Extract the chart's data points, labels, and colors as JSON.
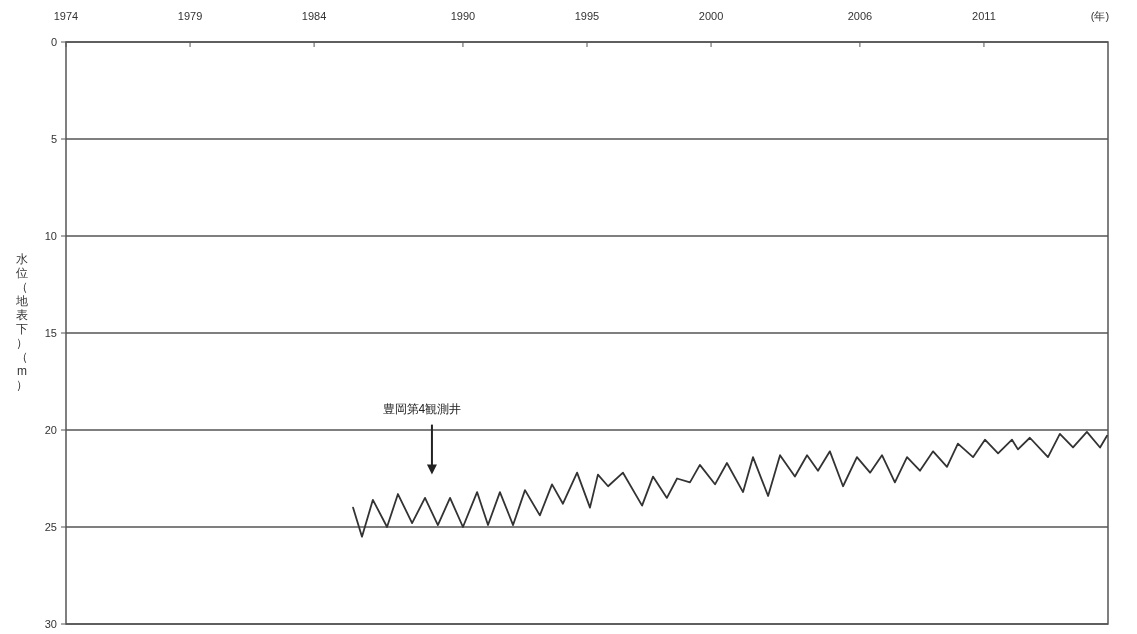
{
  "chart_data": {
    "type": "line",
    "xlabel": "(年)",
    "ylabel": "水位（地表下）（m）",
    "xlim": [
      1974,
      2016
    ],
    "xticks": [
      1974,
      1979,
      1984,
      1990,
      1995,
      2000,
      2006,
      2011
    ],
    "ylim": [
      30,
      0
    ],
    "yticks": [
      0,
      5,
      10,
      15,
      20,
      25,
      30
    ],
    "grid": "y",
    "annotations": [
      "豊岡第4観測井"
    ],
    "series": [
      {
        "color": "#333333",
        "x": [
          1985.57,
          1985.93,
          1986.37,
          1986.94,
          1987.38,
          1987.95,
          1988.47,
          1988.99,
          1989.48,
          1990.0,
          1990.57,
          1991.01,
          1991.49,
          1992.02,
          1992.5,
          1993.1,
          1993.59,
          1994.03,
          1994.6,
          1995.12,
          1995.44,
          1995.85,
          1996.45,
          1997.22,
          1997.66,
          1998.22,
          1998.63,
          1999.15,
          1999.55,
          2000.16,
          2000.64,
          2001.29,
          2001.69,
          2002.3,
          2002.78,
          2003.38,
          2003.87,
          2004.31,
          2004.79,
          2005.32,
          2005.88,
          2006.41,
          2006.89,
          2007.41,
          2007.9,
          2008.42,
          2008.95,
          2009.51,
          2009.95,
          2010.56,
          2011.04,
          2011.57,
          2012.13,
          2012.37,
          2012.85,
          2013.58,
          2014.06,
          2014.59,
          2015.15,
          2015.68,
          2015.96
        ],
        "values": [
          24.0,
          25.5,
          23.6,
          25.0,
          23.3,
          24.8,
          23.5,
          24.9,
          23.5,
          25.0,
          23.2,
          24.9,
          23.2,
          24.9,
          23.1,
          24.4,
          22.8,
          23.8,
          22.2,
          24.0,
          22.3,
          22.9,
          22.2,
          23.9,
          22.4,
          23.5,
          22.5,
          22.7,
          21.8,
          22.8,
          21.7,
          23.2,
          21.4,
          23.4,
          21.3,
          22.4,
          21.3,
          22.1,
          21.1,
          22.9,
          21.4,
          22.2,
          21.3,
          22.7,
          21.4,
          22.1,
          21.1,
          21.9,
          20.7,
          21.4,
          20.5,
          21.2,
          20.5,
          21.0,
          20.4,
          21.4,
          20.2,
          20.9,
          20.1,
          20.9,
          20.3
        ]
      }
    ]
  }
}
